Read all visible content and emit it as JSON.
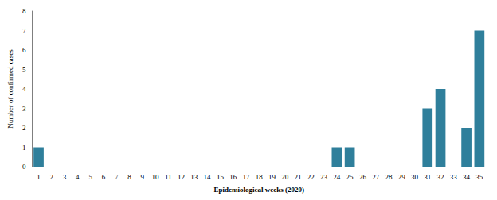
{
  "chart_data": {
    "type": "bar",
    "x_label": "Epidemiological weeks (2020)",
    "y_label": "Number of confirmed cases",
    "categories": [
      "1",
      "2",
      "3",
      "4",
      "5",
      "6",
      "7",
      "8",
      "9",
      "10",
      "11",
      "12",
      "13",
      "14",
      "15",
      "16",
      "17",
      "18",
      "19",
      "20",
      "21",
      "22",
      "23",
      "24",
      "25",
      "26",
      "27",
      "28",
      "29",
      "30",
      "31",
      "32",
      "33",
      "34",
      "35"
    ],
    "values": [
      1,
      0,
      0,
      0,
      0,
      0,
      0,
      0,
      0,
      0,
      0,
      0,
      0,
      0,
      0,
      0,
      0,
      0,
      0,
      0,
      0,
      0,
      0,
      1,
      1,
      0,
      0,
      0,
      0,
      0,
      3,
      4,
      0,
      2,
      7
    ],
    "color": "#2f7f9b",
    "ylim": [
      0,
      8
    ],
    "yticks": [
      0,
      1,
      2,
      3,
      4,
      5,
      6,
      7,
      8
    ],
    "grid": false
  }
}
